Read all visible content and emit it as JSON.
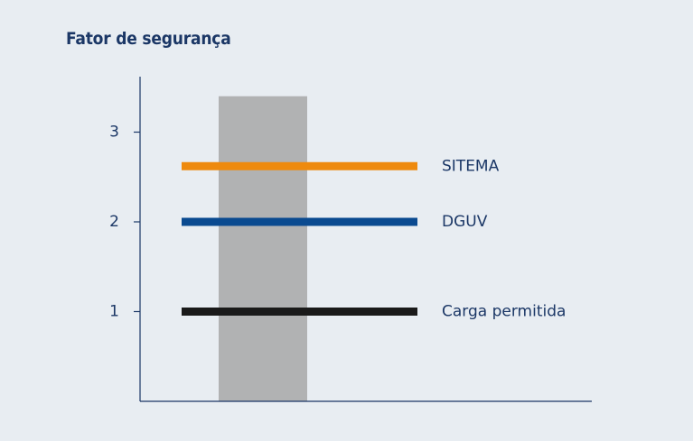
{
  "chart_data": {
    "type": "bar",
    "title": "Fator de segurança",
    "xlabel": "",
    "ylabel": "",
    "ylim": [
      0,
      3
    ],
    "yticks": [
      1,
      2,
      3
    ],
    "grid": false,
    "bar": {
      "value": 3.4,
      "color": "#b1b2b3"
    },
    "reference_lines": [
      {
        "label": "SITEMA",
        "value": 2.62,
        "color": "#ee8a0e"
      },
      {
        "label": "DGUV",
        "value": 2.0,
        "color": "#0a4a90"
      },
      {
        "label": "Carga permitida",
        "value": 1.0,
        "color": "#1a1a1a"
      }
    ],
    "colors": {
      "background": "#e8edf2",
      "axis": "#1b3766",
      "text": "#1b3766"
    }
  }
}
